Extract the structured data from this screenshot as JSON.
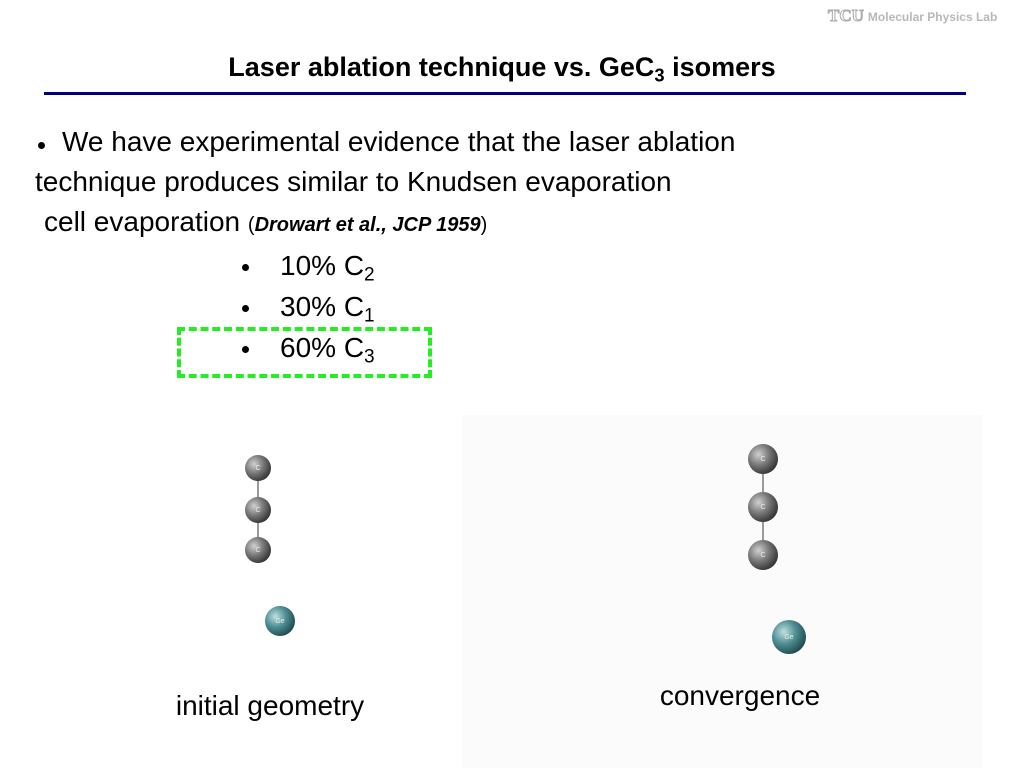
{
  "header": {
    "logo": "TCU",
    "lab": "Molecular Physics Lab",
    "title": {
      "text": "Laser ablation technique vs. GeC",
      "subscript": "3",
      "suffix": " isomers"
    }
  },
  "paragraph": {
    "line1": "We have experimental evidence that the laser ablation",
    "line2": "technique produces similar to Knudsen evaporation",
    "line3": "cell evaporation",
    "open": "(",
    "citation": "Drowart et al., JCP 1959",
    "close": ")"
  },
  "bullets": [
    {
      "text": "10% C",
      "subscript": "2"
    },
    {
      "text": "30% C",
      "subscript": "1"
    },
    {
      "text": "60% C",
      "subscript": "3"
    }
  ],
  "figures": [
    {
      "caption": "initial geometry",
      "atoms": [
        "C",
        "C",
        "C",
        "Ge"
      ]
    },
    {
      "caption": "convergence",
      "atoms": [
        "C",
        "C",
        "C",
        "Ge"
      ]
    }
  ]
}
